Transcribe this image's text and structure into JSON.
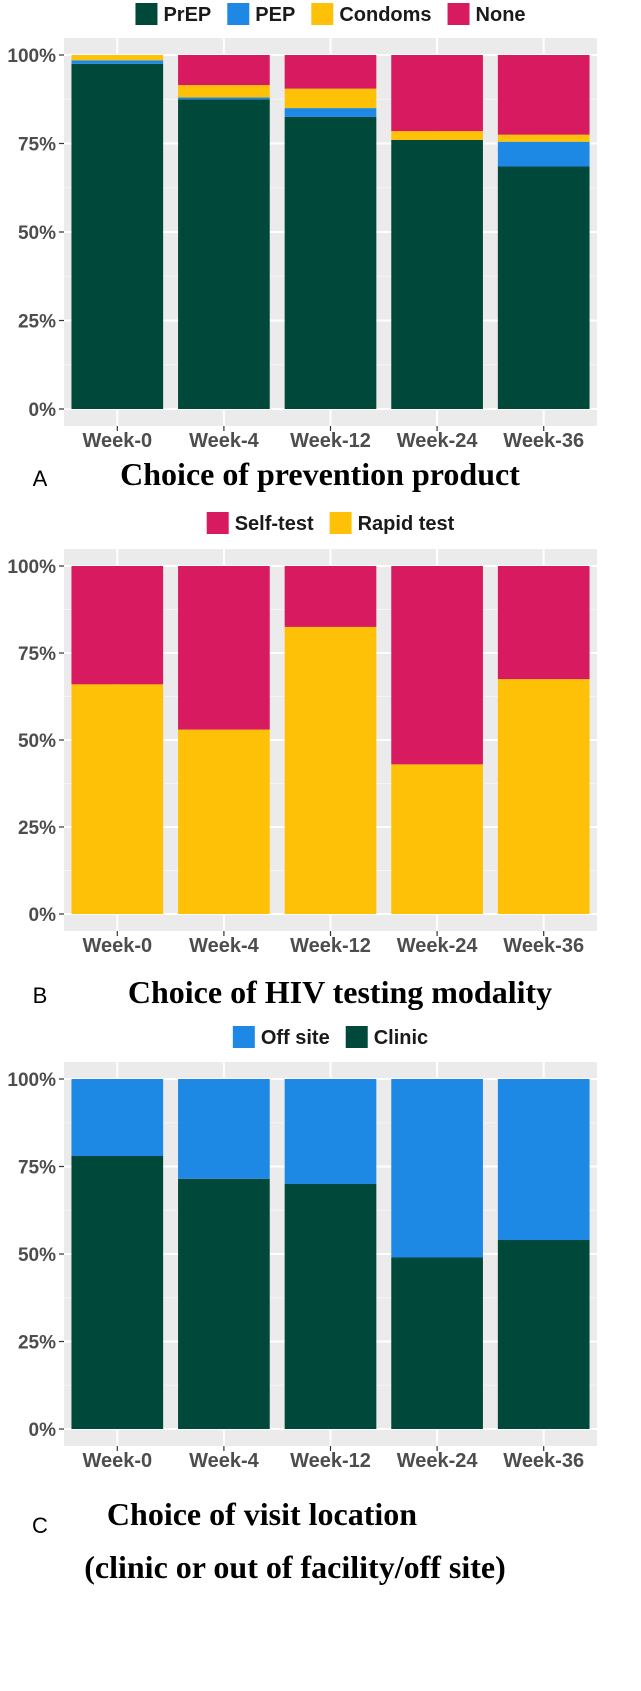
{
  "chart_data": [
    {
      "type": "bar",
      "stacked": true,
      "panel_label": "A",
      "title": "Choice of prevention product",
      "categories": [
        "Week-0",
        "Week-4",
        "Week-12",
        "Week-24",
        "Week-36"
      ],
      "series": [
        {
          "name": "PrEP",
          "color": "#00493a",
          "values": [
            97.5,
            87.5,
            82.5,
            76,
            68.5
          ]
        },
        {
          "name": "PEP",
          "color": "#1e88e5",
          "values": [
            1,
            0.5,
            2.5,
            0,
            7
          ]
        },
        {
          "name": "Condoms",
          "color": "#ffc107",
          "values": [
            1.5,
            3.5,
            5.5,
            2.5,
            2
          ]
        },
        {
          "name": "None",
          "color": "#d81b60",
          "values": [
            0,
            8.5,
            9.5,
            21.5,
            22.5
          ]
        }
      ],
      "legend": {
        "position": "top",
        "order": [
          "PrEP",
          "PEP",
          "Condoms",
          "None"
        ]
      },
      "yticks": [
        "0%",
        "25%",
        "50%",
        "75%",
        "100%"
      ],
      "ylim": [
        0,
        100
      ]
    },
    {
      "type": "bar",
      "stacked": true,
      "panel_label": "B",
      "title": "Choice of HIV testing modality",
      "categories": [
        "Week-0",
        "Week-4",
        "Week-12",
        "Week-24",
        "Week-36"
      ],
      "series": [
        {
          "name": "Rapid test",
          "color": "#ffc107",
          "values": [
            66,
            53,
            82.5,
            43,
            67.5
          ]
        },
        {
          "name": "Self-test",
          "color": "#d81b60",
          "values": [
            34,
            47,
            17.5,
            57,
            32.5
          ]
        }
      ],
      "legend": {
        "position": "top",
        "order": [
          "Self-test",
          "Rapid test"
        ]
      },
      "yticks": [
        "0%",
        "25%",
        "50%",
        "75%",
        "100%"
      ],
      "ylim": [
        0,
        100
      ]
    },
    {
      "type": "bar",
      "stacked": true,
      "panel_label": "C",
      "title": "Choice of visit location",
      "subtitle": "(clinic or out of facility/off site)",
      "categories": [
        "Week-0",
        "Week-4",
        "Week-12",
        "Week-24",
        "Week-36"
      ],
      "series": [
        {
          "name": "Clinic",
          "color": "#00493a",
          "values": [
            78,
            71.5,
            70,
            49,
            54
          ]
        },
        {
          "name": "Off site",
          "color": "#1e88e5",
          "values": [
            22,
            28.5,
            30,
            51,
            46
          ]
        }
      ],
      "legend": {
        "position": "top",
        "order": [
          "Off site",
          "Clinic"
        ]
      },
      "yticks": [
        "0%",
        "25%",
        "50%",
        "75%",
        "100%"
      ],
      "ylim": [
        0,
        100
      ]
    }
  ]
}
